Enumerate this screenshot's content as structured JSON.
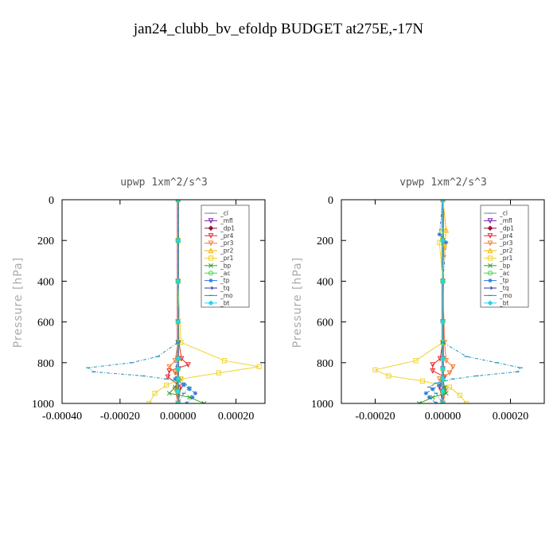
{
  "figure": {
    "title": "jan24_clubb_bv_efoldp  BUDGET at275E,-17N"
  },
  "chart_data": [
    {
      "type": "line",
      "title": "upwp   1xm^2/s^3",
      "ylabel": "Pressure [hPa]",
      "xlim": [
        -0.0004,
        0.0003
      ],
      "ylim": [
        1000,
        0
      ],
      "yticks": [
        0,
        200,
        400,
        600,
        800,
        1000
      ],
      "xticks": [
        -0.0004,
        -0.0002,
        0.0,
        0.0002
      ],
      "xtick_labels": [
        "-0.00040",
        "-0.00020",
        "0.00000",
        "0.00020"
      ],
      "legend_position": "top-right",
      "series": [
        {
          "name": "_cl",
          "color": "#7f7f9f",
          "x": [
            0,
            0,
            0,
            0,
            0,
            0,
            0,
            0,
            0
          ],
          "y": [
            0,
            200,
            400,
            600,
            780,
            830,
            880,
            940,
            1000
          ]
        },
        {
          "name": "_mfl",
          "color": "#7a1fa2",
          "x": [
            0,
            0,
            0,
            0,
            0,
            0,
            0,
            0,
            0
          ],
          "y": [
            0,
            200,
            400,
            600,
            780,
            830,
            880,
            940,
            1000
          ]
        },
        {
          "name": "_dp1",
          "color": "#9b1030",
          "x": [
            0,
            0,
            0,
            0,
            0,
            0,
            0,
            0,
            0
          ],
          "y": [
            0,
            200,
            400,
            600,
            780,
            830,
            880,
            940,
            1000
          ]
        },
        {
          "name": "_pr4",
          "color": "#e8282b",
          "x": [
            0,
            0,
            0,
            3e-06,
            1.2e-05,
            3.5e-05,
            -3e-05,
            -3.5e-05,
            1e-05,
            0
          ],
          "y": [
            0,
            200,
            400,
            700,
            780,
            810,
            840,
            870,
            920,
            1000
          ]
        },
        {
          "name": "_pr3",
          "color": "#f27c38",
          "x": [
            0,
            0,
            0,
            0,
            -1e-05,
            -3e-05,
            -1e-05,
            1e-05,
            -1e-05,
            0
          ],
          "y": [
            0,
            200,
            400,
            700,
            790,
            820,
            850,
            880,
            930,
            1000
          ]
        },
        {
          "name": "_pr2",
          "color": "#f5b400",
          "x": [
            0,
            0,
            0,
            0,
            0,
            0,
            0,
            0,
            0
          ],
          "y": [
            0,
            200,
            400,
            600,
            780,
            830,
            880,
            940,
            1000
          ]
        },
        {
          "name": "_pr1",
          "color": "#f0d32c",
          "x": [
            0,
            0,
            0,
            1e-05,
            0.00016,
            0.00028,
            0.00014,
            1e-05,
            -4e-05,
            -8e-05,
            -0.0001
          ],
          "y": [
            0,
            200,
            400,
            700,
            790,
            820,
            850,
            880,
            910,
            950,
            1000
          ]
        },
        {
          "name": "_bp",
          "color": "#2aa02a",
          "x": [
            0,
            0,
            0,
            0,
            0,
            -1e-05,
            -3e-05,
            4e-05,
            9e-05
          ],
          "y": [
            0,
            200,
            400,
            700,
            880,
            920,
            950,
            970,
            1000
          ]
        },
        {
          "name": "_ac",
          "color": "#4cd34c",
          "x": [
            0,
            0,
            0,
            0,
            0,
            0,
            0,
            0,
            0
          ],
          "y": [
            0,
            200,
            400,
            600,
            780,
            830,
            880,
            940,
            1000
          ]
        },
        {
          "name": "_tp",
          "color": "#2e7be0",
          "x": [
            0,
            0,
            0,
            0,
            -1e-05,
            2e-05,
            4e-05,
            6e-05,
            5e-05,
            3e-05
          ],
          "y": [
            0,
            200,
            400,
            700,
            880,
            910,
            930,
            950,
            970,
            1000
          ]
        },
        {
          "name": "_tq",
          "color": "#2833a8",
          "x": [
            0,
            0,
            0,
            0,
            0,
            0,
            0,
            0,
            0
          ],
          "y": [
            0,
            200,
            400,
            600,
            780,
            830,
            880,
            940,
            1000
          ]
        },
        {
          "name": "_mo",
          "color": "#1d90b8",
          "x": [
            0,
            0,
            0,
            0,
            -7e-05,
            -0.00016,
            -0.00031,
            -0.00029,
            -0.00012,
            -4e-05,
            2e-05,
            4e-05,
            2e-05,
            0
          ],
          "y": [
            0,
            200,
            400,
            700,
            770,
            800,
            825,
            845,
            865,
            880,
            900,
            920,
            950,
            1000
          ]
        },
        {
          "name": "_bt",
          "color": "#20d8e8",
          "x": [
            0,
            0,
            0,
            0,
            0,
            0,
            0,
            0,
            0
          ],
          "y": [
            0,
            200,
            400,
            600,
            780,
            830,
            880,
            940,
            1000
          ]
        }
      ]
    },
    {
      "type": "line",
      "title": "vpwp   1xm^2/s^3",
      "ylabel": "Pressure [hPa]",
      "xlim": [
        -0.0003,
        0.0003
      ],
      "ylim": [
        1000,
        0
      ],
      "yticks": [
        0,
        200,
        400,
        600,
        800,
        1000
      ],
      "xticks": [
        -0.0002,
        0.0,
        0.0002
      ],
      "xtick_labels": [
        "-0.00020",
        "0.00000",
        "0.00020"
      ],
      "legend_position": "top-right",
      "series": [
        {
          "name": "_cl",
          "color": "#7f7f9f",
          "x": [
            0,
            0,
            0,
            0,
            0,
            0,
            0,
            0,
            0
          ],
          "y": [
            0,
            200,
            400,
            600,
            780,
            830,
            880,
            940,
            1000
          ]
        },
        {
          "name": "_mfl",
          "color": "#7a1fa2",
          "x": [
            0,
            0,
            0,
            0,
            0,
            0,
            0,
            0,
            0
          ],
          "y": [
            0,
            200,
            400,
            600,
            780,
            830,
            880,
            940,
            1000
          ]
        },
        {
          "name": "_dp1",
          "color": "#9b1030",
          "x": [
            0,
            0,
            0,
            0,
            0,
            0,
            0,
            0,
            0
          ],
          "y": [
            0,
            200,
            400,
            600,
            780,
            830,
            880,
            940,
            1000
          ]
        },
        {
          "name": "_pr4",
          "color": "#e8282b",
          "x": [
            0,
            0,
            0,
            0,
            -8e-06,
            -3e-05,
            -3e-05,
            5e-06,
            -1e-05,
            0
          ],
          "y": [
            0,
            200,
            400,
            700,
            780,
            810,
            840,
            870,
            920,
            1000
          ]
        },
        {
          "name": "_pr3",
          "color": "#f27c38",
          "x": [
            0,
            0,
            0,
            5e-06,
            1e-05,
            3e-05,
            2e-05,
            -1e-05,
            1e-05,
            0
          ],
          "y": [
            0,
            200,
            400,
            700,
            790,
            820,
            850,
            880,
            930,
            1000
          ]
        },
        {
          "name": "_pr2",
          "color": "#f5b400",
          "x": [
            0,
            1e-05,
            5e-06,
            0,
            0,
            0,
            0,
            0,
            0
          ],
          "y": [
            0,
            150,
            220,
            400,
            700,
            830,
            880,
            940,
            1000
          ]
        },
        {
          "name": "_pr1",
          "color": "#f0d32c",
          "x": [
            0,
            0,
            -1e-05,
            0,
            0,
            -8e-05,
            -0.0002,
            -0.00016,
            -6e-05,
            2e-05,
            5e-05,
            7e-05
          ],
          "y": [
            0,
            150,
            210,
            400,
            700,
            790,
            835,
            865,
            890,
            920,
            960,
            1000
          ]
        },
        {
          "name": "_bp",
          "color": "#2aa02a",
          "x": [
            0,
            0,
            0,
            0,
            0,
            5e-06,
            1e-05,
            -3e-05,
            -7e-05
          ],
          "y": [
            0,
            200,
            400,
            700,
            880,
            920,
            950,
            970,
            1000
          ]
        },
        {
          "name": "_ac",
          "color": "#4cd34c",
          "x": [
            0,
            0,
            0,
            0,
            0,
            0,
            0,
            0,
            0
          ],
          "y": [
            0,
            200,
            400,
            600,
            780,
            830,
            880,
            940,
            1000
          ]
        },
        {
          "name": "_tp",
          "color": "#2e7be0",
          "x": [
            0,
            -1e-05,
            1e-05,
            0,
            0,
            0,
            -1e-05,
            -3e-05,
            -5e-05,
            -4e-05,
            -2e-05
          ],
          "y": [
            0,
            170,
            210,
            400,
            700,
            880,
            910,
            930,
            950,
            970,
            1000
          ]
        },
        {
          "name": "_tq",
          "color": "#2833a8",
          "x": [
            0,
            0,
            0,
            0,
            0,
            0,
            0,
            0,
            0
          ],
          "y": [
            0,
            200,
            400,
            600,
            780,
            830,
            880,
            940,
            1000
          ]
        },
        {
          "name": "_mo",
          "color": "#1d90b8",
          "x": [
            0,
            0,
            0,
            0,
            7e-05,
            0.00016,
            0.00023,
            0.00022,
            0.0001,
            3e-05,
            -2e-05,
            -4e-05,
            -2e-05,
            0
          ],
          "y": [
            0,
            200,
            400,
            700,
            770,
            800,
            825,
            845,
            865,
            880,
            900,
            920,
            950,
            1000
          ]
        },
        {
          "name": "_bt",
          "color": "#20d8e8",
          "x": [
            0,
            0,
            0,
            0,
            0,
            0,
            0,
            0,
            0
          ],
          "y": [
            0,
            200,
            400,
            600,
            780,
            830,
            880,
            940,
            1000
          ]
        }
      ]
    }
  ]
}
